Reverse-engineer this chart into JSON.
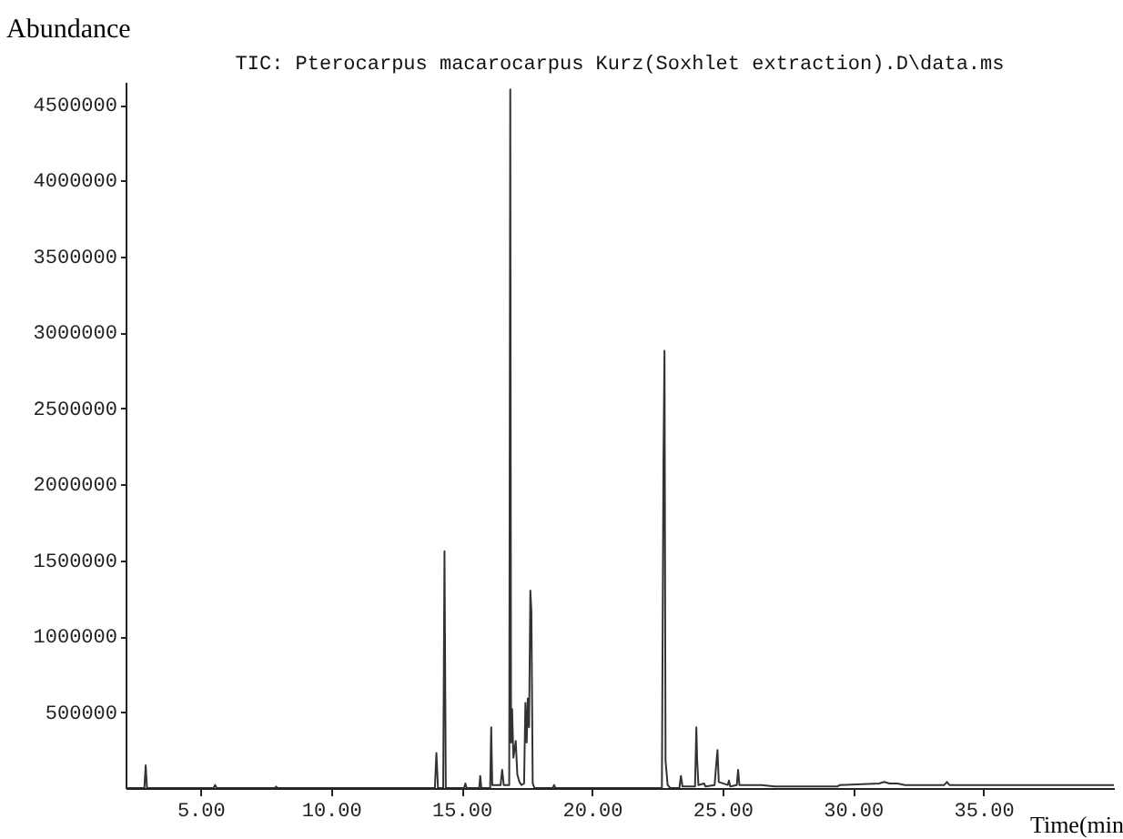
{
  "chart_data": {
    "type": "line",
    "title": "TIC: Pterocarpus macarocarpus Kurz(Soxhlet extraction).D\\data.ms",
    "xlabel": "Time(min",
    "ylabel": "Abundance",
    "x": [
      2.13,
      2.85,
      2.9,
      2.95,
      5.5,
      5.56,
      5.62,
      7.85,
      7.9,
      7.95,
      13.98,
      14.04,
      14.1,
      14.3,
      14.35,
      14.4,
      15.1,
      15.15,
      15.2,
      15.68,
      15.72,
      15.76,
      16.1,
      16.14,
      16.18,
      16.5,
      16.56,
      16.62,
      16.83,
      16.87,
      16.9,
      16.94,
      16.99,
      17.08,
      17.14,
      17.22,
      17.3,
      17.4,
      17.45,
      17.5,
      17.54,
      17.59,
      17.64,
      17.68,
      17.73,
      17.8,
      18.5,
      18.55,
      18.6,
      22.68,
      22.74,
      22.78,
      22.82,
      22.9,
      23.0,
      23.35,
      23.41,
      23.47,
      23.95,
      24.0,
      24.03,
      24.08,
      24.3,
      24.35,
      24.7,
      24.75,
      24.81,
      24.86,
      25.2,
      25.25,
      25.3,
      25.55,
      25.6,
      25.65,
      26.0,
      26.5,
      27.0,
      28.0,
      29.0,
      29.4,
      29.5,
      31.0,
      31.2,
      31.4,
      31.7,
      32.0,
      33.5,
      33.6,
      33.7,
      36.0,
      40.0
    ],
    "series": [
      {
        "color": "#333333",
        "values": [
          0,
          0,
          150000,
          0,
          0,
          20000,
          0,
          0,
          10000,
          0,
          0,
          230000,
          0,
          0,
          1560000,
          0,
          0,
          30000,
          0,
          0,
          80000,
          0,
          0,
          400000,
          20000,
          20000,
          120000,
          20000,
          20000,
          4600000,
          300000,
          520000,
          200000,
          310000,
          90000,
          40000,
          20000,
          30000,
          560000,
          300000,
          590000,
          400000,
          1300000,
          1160000,
          30000,
          0,
          0,
          20000,
          0,
          0,
          2150000,
          2880000,
          180000,
          20000,
          0,
          0,
          80000,
          10000,
          10000,
          400000,
          190000,
          20000,
          30000,
          10000,
          20000,
          130000,
          250000,
          40000,
          20000,
          50000,
          10000,
          20000,
          120000,
          20000,
          20000,
          20000,
          10000,
          10000,
          10000,
          10000,
          20000,
          30000,
          40000,
          30000,
          30000,
          20000,
          20000,
          40000,
          20000,
          20000,
          20000
        ]
      }
    ],
    "xlim": [
      2.13,
      40
    ],
    "xticks": [
      {
        "value": 5,
        "label": "5.00"
      },
      {
        "value": 10,
        "label": "10.00"
      },
      {
        "value": 15,
        "label": "15.00"
      },
      {
        "value": 20,
        "label": "20.00"
      },
      {
        "value": 25,
        "label": "25.00"
      },
      {
        "value": 30,
        "label": "30.00"
      },
      {
        "value": 35,
        "label": "35.00"
      }
    ],
    "ylim": [
      0,
      4650000
    ],
    "yticks": [
      500000,
      1000000,
      1500000,
      2000000,
      2500000,
      3000000,
      3500000,
      4000000,
      4500000
    ],
    "line_style": "solid"
  }
}
